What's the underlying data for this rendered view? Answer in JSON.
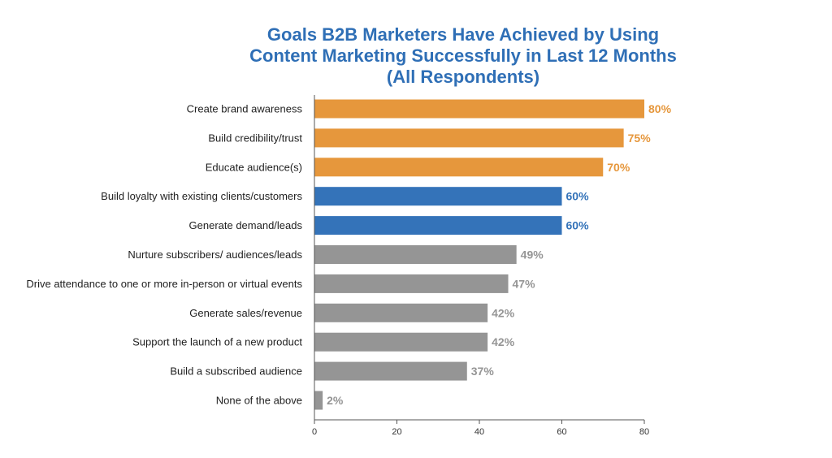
{
  "chart_data": {
    "type": "bar",
    "orientation": "horizontal",
    "title_lines": [
      "Goals B2B Marketers Have Achieved by Using",
      "Content Marketing Successfully in Last 12 Months",
      "(All Respondents)"
    ],
    "categories": [
      "Create brand awareness",
      "Build credibility/trust",
      "Educate audience(s)",
      "Build loyalty with existing clients/customers",
      "Generate demand/leads",
      "Nurture subscribers/ audiences/leads",
      "Drive attendance to one or more in-person or virtual events",
      "Generate sales/revenue",
      "Support the launch of a new product",
      "Build a subscribed audience",
      "None of the above"
    ],
    "values": [
      80,
      75,
      70,
      60,
      60,
      49,
      47,
      42,
      42,
      37,
      2
    ],
    "value_labels": [
      "80%",
      "75%",
      "70%",
      "60%",
      "60%",
      "49%",
      "47%",
      "42%",
      "42%",
      "37%",
      "2%"
    ],
    "bar_colors": [
      "#e6973c",
      "#e6973c",
      "#e6973c",
      "#3473b9",
      "#3473b9",
      "#959595",
      "#959595",
      "#959595",
      "#959595",
      "#959595",
      "#959595"
    ],
    "xlim": [
      0,
      80
    ],
    "xticks": [
      0,
      20,
      40,
      60,
      80
    ],
    "xlabel": "",
    "ylabel": "",
    "grid": false
  }
}
